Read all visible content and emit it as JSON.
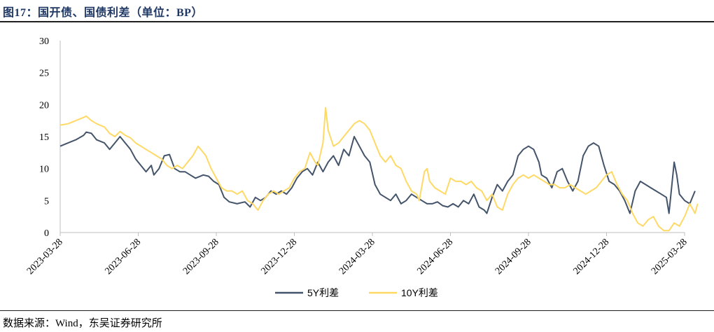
{
  "figure": {
    "title": "图17：国开债、国债利差（单位：BP）",
    "source": "数据来源：Wind，东吴证券研究所"
  },
  "colors": {
    "s5y": "#44546a",
    "s10y": "#ffd966",
    "axis": "#bfbfbf"
  },
  "chart_data": {
    "type": "line",
    "title": "图17：国开债、国债利差（单位：BP）",
    "xlabel": "",
    "ylabel": "",
    "ylim": [
      0,
      30
    ],
    "yticks": [
      0,
      5,
      10,
      15,
      20,
      25,
      30
    ],
    "x_range": [
      0,
      24
    ],
    "xticks": [
      {
        "label": "2023-03-28",
        "t": 0
      },
      {
        "label": "2023-06-28",
        "t": 3
      },
      {
        "label": "2023-09-28",
        "t": 6
      },
      {
        "label": "2023-12-28",
        "t": 9
      },
      {
        "label": "2024-03-28",
        "t": 12
      },
      {
        "label": "2024-06-28",
        "t": 15
      },
      {
        "label": "2024-09-28",
        "t": 18
      },
      {
        "label": "2024-12-28",
        "t": 21
      },
      {
        "label": "2025-03-28",
        "t": 24
      }
    ],
    "legend_position": "bottom-center",
    "series": [
      {
        "name": "5Y利差",
        "color": "#44546a",
        "points": [
          [
            0.0,
            13.5
          ],
          [
            0.3,
            14.0
          ],
          [
            0.6,
            14.5
          ],
          [
            0.9,
            15.2
          ],
          [
            1.0,
            15.7
          ],
          [
            1.2,
            15.5
          ],
          [
            1.4,
            14.5
          ],
          [
            1.7,
            14.0
          ],
          [
            1.9,
            13.0
          ],
          [
            2.1,
            14.0
          ],
          [
            2.3,
            15.0
          ],
          [
            2.5,
            14.0
          ],
          [
            2.7,
            13.0
          ],
          [
            2.9,
            11.5
          ],
          [
            3.1,
            10.5
          ],
          [
            3.3,
            9.5
          ],
          [
            3.5,
            10.5
          ],
          [
            3.6,
            9.0
          ],
          [
            3.8,
            10.0
          ],
          [
            4.0,
            12.0
          ],
          [
            4.2,
            12.2
          ],
          [
            4.4,
            10.0
          ],
          [
            4.6,
            9.5
          ],
          [
            4.8,
            9.5
          ],
          [
            5.0,
            9.0
          ],
          [
            5.2,
            8.5
          ],
          [
            5.5,
            9.0
          ],
          [
            5.7,
            8.8
          ],
          [
            5.9,
            8.0
          ],
          [
            6.1,
            7.5
          ],
          [
            6.3,
            5.5
          ],
          [
            6.5,
            4.8
          ],
          [
            6.8,
            4.5
          ],
          [
            7.1,
            4.8
          ],
          [
            7.3,
            4.0
          ],
          [
            7.5,
            5.5
          ],
          [
            7.7,
            5.0
          ],
          [
            7.9,
            5.5
          ],
          [
            8.1,
            6.5
          ],
          [
            8.3,
            6.0
          ],
          [
            8.5,
            6.5
          ],
          [
            8.7,
            6.0
          ],
          [
            8.9,
            7.0
          ],
          [
            9.1,
            8.5
          ],
          [
            9.3,
            9.5
          ],
          [
            9.5,
            10.0
          ],
          [
            9.7,
            9.0
          ],
          [
            9.9,
            11.0
          ],
          [
            10.1,
            9.5
          ],
          [
            10.3,
            11.0
          ],
          [
            10.5,
            12.0
          ],
          [
            10.7,
            10.5
          ],
          [
            10.9,
            13.0
          ],
          [
            11.1,
            12.0
          ],
          [
            11.3,
            15.0
          ],
          [
            11.5,
            13.5
          ],
          [
            11.7,
            12.0
          ],
          [
            11.9,
            11.0
          ],
          [
            12.1,
            7.5
          ],
          [
            12.3,
            6.0
          ],
          [
            12.5,
            5.5
          ],
          [
            12.7,
            5.0
          ],
          [
            12.9,
            6.0
          ],
          [
            13.1,
            4.5
          ],
          [
            13.3,
            5.0
          ],
          [
            13.5,
            6.0
          ],
          [
            13.7,
            5.5
          ],
          [
            13.9,
            5.0
          ],
          [
            14.1,
            4.5
          ],
          [
            14.3,
            4.5
          ],
          [
            14.5,
            4.8
          ],
          [
            14.7,
            4.2
          ],
          [
            14.9,
            4.0
          ],
          [
            15.1,
            4.5
          ],
          [
            15.3,
            4.0
          ],
          [
            15.5,
            5.0
          ],
          [
            15.7,
            4.5
          ],
          [
            15.9,
            6.0
          ],
          [
            16.1,
            4.0
          ],
          [
            16.3,
            3.5
          ],
          [
            16.4,
            3.0
          ],
          [
            16.6,
            5.5
          ],
          [
            16.8,
            7.5
          ],
          [
            17.0,
            6.5
          ],
          [
            17.2,
            8.0
          ],
          [
            17.4,
            9.0
          ],
          [
            17.6,
            12.0
          ],
          [
            17.8,
            13.0
          ],
          [
            18.0,
            13.5
          ],
          [
            18.2,
            13.0
          ],
          [
            18.4,
            11.0
          ],
          [
            18.5,
            9.0
          ],
          [
            18.7,
            8.5
          ],
          [
            18.9,
            7.0
          ],
          [
            19.1,
            9.5
          ],
          [
            19.3,
            10.0
          ],
          [
            19.5,
            8.0
          ],
          [
            19.7,
            6.5
          ],
          [
            19.9,
            8.0
          ],
          [
            20.1,
            12.0
          ],
          [
            20.3,
            13.5
          ],
          [
            20.5,
            14.0
          ],
          [
            20.7,
            13.5
          ],
          [
            20.9,
            10.5
          ],
          [
            21.1,
            8.0
          ],
          [
            21.3,
            7.5
          ],
          [
            21.5,
            6.5
          ],
          [
            21.7,
            5.0
          ],
          [
            21.9,
            3.0
          ],
          [
            22.1,
            6.5
          ],
          [
            22.3,
            8.0
          ],
          [
            22.5,
            7.5
          ],
          [
            22.7,
            7.0
          ],
          [
            22.9,
            6.5
          ],
          [
            23.1,
            6.0
          ],
          [
            23.3,
            5.5
          ],
          [
            23.4,
            3.0
          ],
          [
            23.6,
            11.0
          ],
          [
            23.7,
            9.0
          ],
          [
            23.8,
            6.0
          ],
          [
            24.0,
            5.0
          ],
          [
            24.2,
            4.5
          ],
          [
            24.4,
            6.5
          ]
        ]
      },
      {
        "name": "10Y利差",
        "color": "#ffd966",
        "points": [
          [
            0.0,
            16.8
          ],
          [
            0.3,
            17.0
          ],
          [
            0.6,
            17.5
          ],
          [
            0.9,
            18.0
          ],
          [
            1.0,
            18.2
          ],
          [
            1.2,
            17.5
          ],
          [
            1.4,
            17.0
          ],
          [
            1.7,
            16.5
          ],
          [
            1.9,
            15.5
          ],
          [
            2.1,
            15.0
          ],
          [
            2.3,
            15.8
          ],
          [
            2.5,
            15.2
          ],
          [
            2.7,
            14.8
          ],
          [
            2.9,
            14.0
          ],
          [
            3.1,
            13.5
          ],
          [
            3.3,
            13.0
          ],
          [
            3.5,
            12.5
          ],
          [
            3.7,
            12.0
          ],
          [
            3.9,
            11.5
          ],
          [
            4.1,
            10.5
          ],
          [
            4.3,
            10.0
          ],
          [
            4.5,
            10.5
          ],
          [
            4.7,
            10.0
          ],
          [
            4.9,
            11.0
          ],
          [
            5.1,
            12.0
          ],
          [
            5.3,
            13.5
          ],
          [
            5.4,
            13.0
          ],
          [
            5.6,
            12.0
          ],
          [
            5.8,
            10.0
          ],
          [
            6.0,
            8.5
          ],
          [
            6.2,
            7.0
          ],
          [
            6.4,
            6.5
          ],
          [
            6.6,
            6.5
          ],
          [
            6.8,
            6.0
          ],
          [
            7.0,
            6.5
          ],
          [
            7.2,
            5.0
          ],
          [
            7.4,
            4.5
          ],
          [
            7.6,
            3.5
          ],
          [
            7.8,
            5.0
          ],
          [
            8.0,
            6.0
          ],
          [
            8.2,
            6.5
          ],
          [
            8.4,
            6.0
          ],
          [
            8.6,
            6.5
          ],
          [
            8.8,
            7.0
          ],
          [
            9.0,
            8.5
          ],
          [
            9.2,
            9.5
          ],
          [
            9.4,
            10.0
          ],
          [
            9.6,
            12.5
          ],
          [
            9.8,
            11.0
          ],
          [
            9.9,
            10.5
          ],
          [
            10.1,
            14.0
          ],
          [
            10.2,
            19.5
          ],
          [
            10.3,
            16.0
          ],
          [
            10.5,
            13.5
          ],
          [
            10.7,
            14.0
          ],
          [
            10.9,
            15.0
          ],
          [
            11.1,
            16.0
          ],
          [
            11.3,
            17.0
          ],
          [
            11.5,
            17.5
          ],
          [
            11.7,
            17.0
          ],
          [
            11.9,
            16.0
          ],
          [
            12.1,
            14.0
          ],
          [
            12.3,
            12.0
          ],
          [
            12.5,
            11.0
          ],
          [
            12.7,
            12.0
          ],
          [
            12.9,
            10.5
          ],
          [
            13.1,
            10.0
          ],
          [
            13.3,
            8.0
          ],
          [
            13.5,
            6.5
          ],
          [
            13.7,
            6.0
          ],
          [
            13.8,
            5.0
          ],
          [
            14.0,
            9.5
          ],
          [
            14.1,
            10.0
          ],
          [
            14.2,
            8.0
          ],
          [
            14.4,
            7.0
          ],
          [
            14.6,
            6.5
          ],
          [
            14.8,
            6.0
          ],
          [
            15.0,
            8.5
          ],
          [
            15.2,
            8.0
          ],
          [
            15.4,
            8.0
          ],
          [
            15.6,
            7.5
          ],
          [
            15.8,
            8.0
          ],
          [
            16.0,
            7.0
          ],
          [
            16.2,
            6.5
          ],
          [
            16.4,
            5.0
          ],
          [
            16.6,
            6.0
          ],
          [
            16.8,
            4.0
          ],
          [
            17.0,
            3.5
          ],
          [
            17.2,
            6.0
          ],
          [
            17.4,
            7.5
          ],
          [
            17.6,
            8.5
          ],
          [
            17.8,
            9.0
          ],
          [
            18.0,
            8.5
          ],
          [
            18.2,
            9.0
          ],
          [
            18.4,
            8.5
          ],
          [
            18.6,
            8.0
          ],
          [
            18.8,
            7.5
          ],
          [
            19.0,
            7.5
          ],
          [
            19.2,
            7.0
          ],
          [
            19.4,
            7.0
          ],
          [
            19.6,
            7.5
          ],
          [
            19.8,
            7.0
          ],
          [
            20.0,
            6.5
          ],
          [
            20.2,
            6.0
          ],
          [
            20.4,
            6.5
          ],
          [
            20.6,
            7.0
          ],
          [
            20.8,
            8.0
          ],
          [
            21.0,
            9.0
          ],
          [
            21.2,
            9.5
          ],
          [
            21.4,
            7.5
          ],
          [
            21.6,
            6.0
          ],
          [
            21.8,
            5.0
          ],
          [
            22.0,
            3.0
          ],
          [
            22.2,
            1.5
          ],
          [
            22.4,
            1.0
          ],
          [
            22.6,
            2.0
          ],
          [
            22.8,
            2.5
          ],
          [
            23.0,
            1.0
          ],
          [
            23.2,
            0.3
          ],
          [
            23.4,
            0.3
          ],
          [
            23.6,
            1.5
          ],
          [
            23.8,
            1.0
          ],
          [
            24.0,
            2.5
          ],
          [
            24.2,
            4.5
          ],
          [
            24.4,
            3.0
          ],
          [
            24.5,
            4.5
          ]
        ]
      }
    ]
  }
}
